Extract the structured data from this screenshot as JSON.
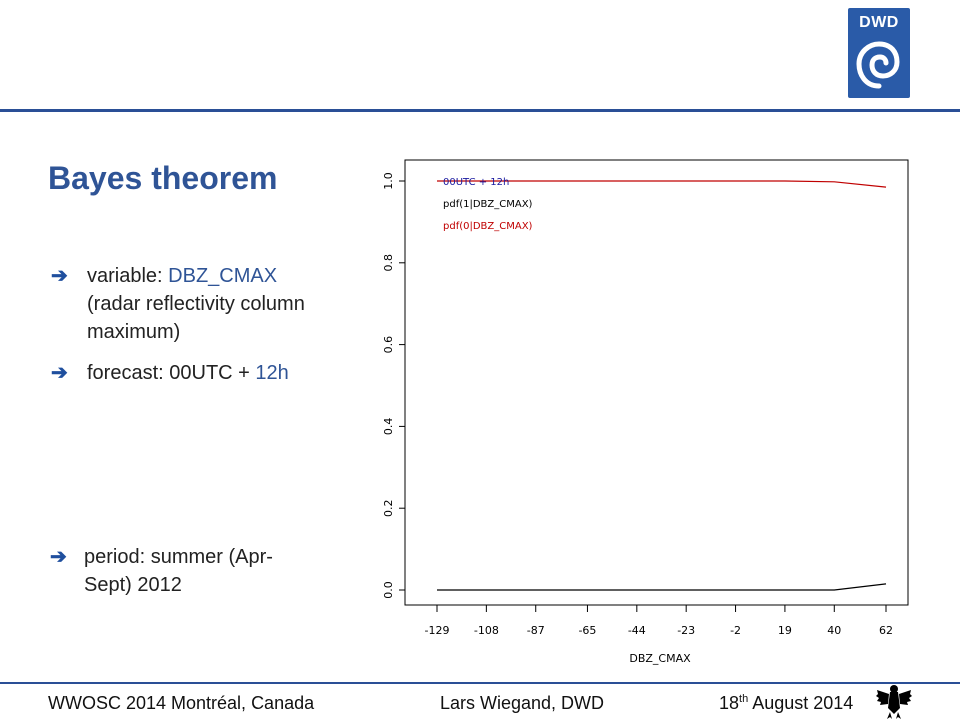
{
  "logo": {
    "text": "DWD"
  },
  "title": "Bayes theorem",
  "bullets": {
    "b1_label": "variable: ",
    "b1_value": "DBZ_CMAX",
    "b1_line2": "(radar reflectivity column",
    "b1_line3": "maximum)",
    "b2_label": "forecast: 00UTC + ",
    "b2_value": "12h",
    "b3_line1": "period: summer (Apr-",
    "b3_line2": "Sept) 2012"
  },
  "footer": {
    "left": "WWOSC 2014 Montréal, Canada",
    "center": "Lars Wiegand, DWD",
    "date_day": "18",
    "date_sup": "th",
    "date_rest": " August 2014"
  },
  "chart_data": {
    "type": "line",
    "xlabel": "DBZ_CMAX",
    "ylabel": "",
    "xlim": [
      -129,
      62
    ],
    "ylim": [
      0,
      1
    ],
    "x_ticks": [
      "-129",
      "-108",
      "-87",
      "-65",
      "-44",
      "-23",
      "-2",
      "19",
      "40",
      "62"
    ],
    "x_tick_values": [
      -129,
      -108,
      -87,
      -65,
      -44,
      -23,
      -2,
      19,
      40,
      62
    ],
    "y_ticks": [
      "0.0",
      "0.2",
      "0.4",
      "0.6",
      "0.8",
      "1.0"
    ],
    "y_tick_values": [
      0,
      0.2,
      0.4,
      0.6,
      0.8,
      1.0
    ],
    "legend": [
      "00UTC + 12h",
      "pdf(1|DBZ_CMAX)",
      "pdf(0|DBZ_CMAX)"
    ],
    "legend_colors": [
      "#1a1aa0",
      "#000000",
      "#c00000"
    ],
    "legend_position": "top-left",
    "grid": false,
    "series": [
      {
        "name": "pdf(1|DBZ_CMAX)",
        "color": "#000000",
        "x": [
          -129,
          -108,
          -87,
          -65,
          -44,
          -23,
          -2,
          19,
          40,
          62
        ],
        "y": [
          0,
          0,
          0,
          0,
          0,
          0,
          0,
          0,
          0,
          0.015
        ]
      },
      {
        "name": "pdf(0|DBZ_CMAX)",
        "color": "#c00000",
        "x": [
          -129,
          -108,
          -87,
          -65,
          -44,
          -23,
          -2,
          19,
          40,
          62
        ],
        "y": [
          1,
          1,
          1,
          1,
          1,
          1,
          1,
          1,
          0.998,
          0.985
        ]
      }
    ]
  }
}
